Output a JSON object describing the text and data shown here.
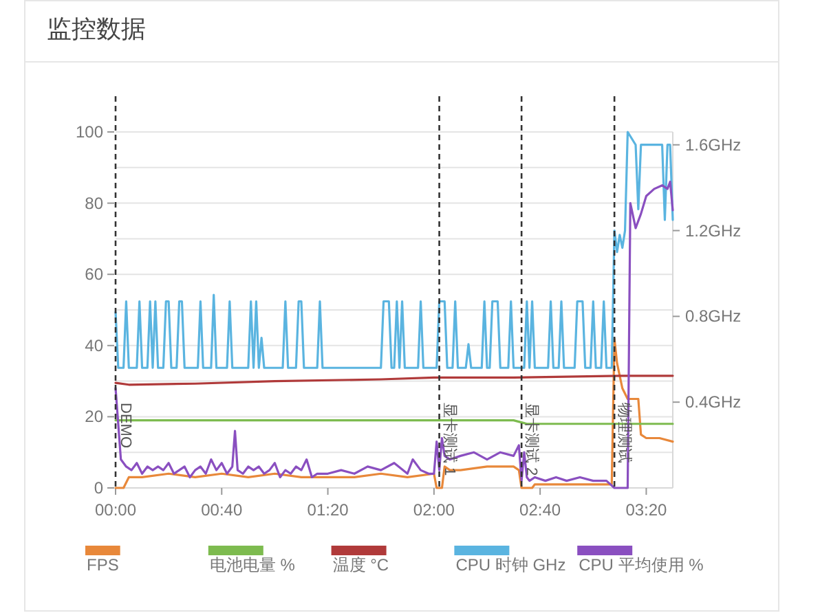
{
  "chart_data": {
    "type": "line",
    "title": "监控数据",
    "xlim": [
      0,
      210
    ],
    "xticks": [
      {
        "value": 0,
        "label": "00:00"
      },
      {
        "value": 40,
        "label": "00:40"
      },
      {
        "value": 80,
        "label": "01:20"
      },
      {
        "value": 120,
        "label": "02:00"
      },
      {
        "value": 160,
        "label": "02:40"
      },
      {
        "value": 200,
        "label": "03:20"
      }
    ],
    "ylim": [
      0,
      100
    ],
    "yticks": [
      0,
      {
        "value": 10,
        "label": null
      },
      20,
      {
        "value": 30,
        "label": null
      },
      40,
      {
        "value": 50,
        "label": null
      },
      60,
      {
        "value": 70,
        "label": null
      },
      80,
      {
        "value": 90,
        "label": null
      },
      100
    ],
    "y2lim": [
      0,
      1.66
    ],
    "y2ticks": [
      {
        "value": 0.4,
        "label": "0.4GHz"
      },
      {
        "value": 0.8,
        "label": "0.8GHz"
      },
      {
        "value": 1.2,
        "label": "1.2GHz"
      },
      {
        "value": 1.6,
        "label": "1.6GHz"
      }
    ],
    "grid": "y",
    "legend": "bottom",
    "marker": "none",
    "ref_lines": [
      {
        "axis": "x",
        "value": 0,
        "label": "DEMO",
        "color": "#333333",
        "line_style": "dashed"
      },
      {
        "axis": "x",
        "value": 122,
        "label": "显卡测试 1",
        "color": "#333333",
        "line_style": "dashed"
      },
      {
        "axis": "x",
        "value": 153,
        "label": "显卡测试 2",
        "color": "#333333",
        "line_style": "dashed"
      },
      {
        "axis": "x",
        "value": 188,
        "label": "物理测试",
        "color": "#333333",
        "line_style": "dashed"
      }
    ],
    "series": [
      {
        "name": "FPS",
        "color": "#e8883a",
        "x": [
          0,
          3,
          5,
          10,
          20,
          30,
          40,
          50,
          60,
          70,
          80,
          90,
          100,
          110,
          120,
          121,
          123,
          124,
          126,
          130,
          140,
          150,
          152,
          153,
          157,
          158,
          165,
          175,
          185,
          187,
          188,
          189,
          191,
          193,
          194,
          197,
          198,
          200,
          205,
          210
        ],
        "values": [
          0,
          0,
          3,
          3,
          4,
          3,
          4,
          3,
          4,
          3,
          3,
          3,
          4,
          3,
          4,
          0,
          0,
          6,
          5,
          5,
          6,
          6,
          5,
          0,
          0,
          1,
          1,
          1,
          1,
          1,
          42,
          35,
          28,
          25,
          25,
          25,
          15,
          14,
          14,
          13
        ]
      },
      {
        "name": "电池电量 %",
        "color": "#7dbb4f",
        "x": [
          0,
          150,
          155,
          210
        ],
        "values": [
          19,
          19,
          18,
          18
        ]
      },
      {
        "name": "温度 °C",
        "color": "#b03a3a",
        "x": [
          0,
          5,
          30,
          60,
          100,
          120,
          150,
          190,
          210
        ],
        "values": [
          29.5,
          29,
          29.3,
          30,
          30.5,
          31,
          31,
          31.5,
          31.5
        ]
      },
      {
        "name": "CPU 时钟 GHz",
        "color": "#5ab4e0",
        "axis": "y2",
        "x": [
          0,
          1,
          3,
          4,
          5,
          8,
          9,
          10,
          12,
          13,
          14,
          15,
          16,
          18,
          19,
          20,
          21,
          23,
          24,
          25,
          26,
          31,
          32,
          33,
          36,
          37,
          38,
          42,
          43,
          44,
          50,
          51,
          52,
          53,
          54,
          55,
          56,
          63,
          64,
          65,
          68,
          69,
          70,
          71,
          76,
          77,
          78,
          100,
          101,
          103,
          104,
          105,
          106,
          107,
          108,
          109,
          114,
          115,
          116,
          121,
          122,
          124,
          125,
          127,
          128,
          129,
          132,
          133,
          134,
          138,
          139,
          140,
          141,
          142,
          144,
          145,
          148,
          149,
          150,
          154,
          155,
          156,
          157,
          158,
          163,
          164,
          165,
          167,
          168,
          169,
          173,
          174,
          176,
          177,
          179,
          180,
          181,
          183,
          184,
          185,
          187,
          188,
          189,
          190,
          191,
          192,
          193,
          196,
          197,
          198,
          206,
          207,
          208,
          209,
          210
        ],
        "values": [
          0.82,
          0.56,
          0.56,
          0.87,
          0.56,
          0.56,
          0.87,
          0.56,
          0.56,
          0.87,
          0.56,
          0.87,
          0.56,
          0.56,
          0.87,
          0.87,
          0.56,
          0.56,
          0.87,
          0.87,
          0.56,
          0.56,
          0.87,
          0.56,
          0.56,
          0.9,
          0.56,
          0.56,
          0.87,
          0.56,
          0.56,
          0.87,
          0.56,
          0.87,
          0.56,
          0.7,
          0.56,
          0.56,
          0.87,
          0.56,
          0.56,
          0.87,
          0.87,
          0.56,
          0.56,
          0.87,
          0.56,
          0.56,
          0.87,
          0.87,
          0.56,
          0.56,
          0.87,
          0.56,
          0.87,
          0.56,
          0.56,
          0.87,
          0.56,
          0.56,
          0.87,
          0.87,
          0.56,
          0.56,
          0.87,
          0.56,
          0.56,
          0.67,
          0.56,
          0.56,
          0.87,
          0.56,
          0.56,
          0.87,
          0.87,
          0.56,
          0.56,
          0.87,
          0.56,
          0.56,
          0.87,
          0.56,
          0.87,
          0.56,
          0.56,
          0.87,
          0.56,
          0.56,
          0.87,
          0.56,
          0.56,
          0.87,
          0.87,
          0.56,
          0.56,
          0.87,
          0.56,
          0.56,
          0.87,
          0.56,
          0.56,
          1.2,
          1.1,
          1.18,
          1.12,
          1.2,
          1.66,
          1.6,
          1.3,
          1.6,
          1.6,
          1.25,
          1.6,
          1.6,
          1.25
        ]
      },
      {
        "name": "CPU 平均使用 %",
        "color": "#8a4fc0",
        "x": [
          0,
          2,
          4,
          6,
          8,
          10,
          12,
          14,
          16,
          18,
          20,
          22,
          24,
          26,
          28,
          30,
          32,
          34,
          36,
          38,
          40,
          42,
          44,
          45,
          46,
          48,
          50,
          52,
          54,
          56,
          58,
          60,
          62,
          64,
          66,
          68,
          70,
          72,
          74,
          76,
          80,
          85,
          90,
          95,
          100,
          105,
          110,
          112,
          115,
          118,
          120,
          121,
          122,
          123,
          124,
          126,
          130,
          135,
          140,
          145,
          150,
          152,
          153,
          154,
          155,
          156,
          158,
          162,
          166,
          170,
          175,
          180,
          185,
          188,
          192,
          193,
          194,
          196,
          198,
          200,
          203,
          206,
          208,
          209,
          210
        ],
        "values": [
          28,
          8,
          6,
          5,
          7,
          4,
          6,
          5,
          6,
          5,
          7,
          4,
          5,
          6,
          3,
          5,
          6,
          4,
          8,
          5,
          7,
          4,
          6,
          16,
          5,
          4,
          6,
          5,
          6,
          4,
          5,
          7,
          3,
          5,
          4,
          6,
          5,
          8,
          3,
          4,
          4,
          5,
          4,
          6,
          5,
          7,
          4,
          8,
          5,
          4,
          4,
          13,
          5,
          14,
          9,
          8,
          9,
          10,
          8,
          10,
          9,
          12,
          2,
          10,
          3,
          2,
          3,
          2,
          3,
          2,
          3,
          2,
          2,
          0,
          0,
          0,
          80,
          73,
          77,
          82,
          84,
          85,
          84,
          86,
          78
        ]
      }
    ]
  }
}
